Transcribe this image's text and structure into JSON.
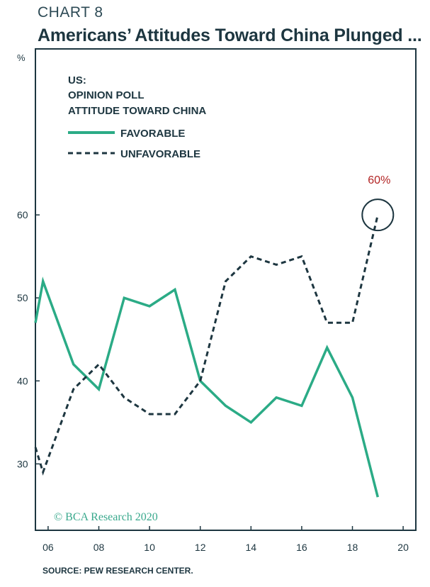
{
  "header": {
    "chart_label": "CHART 8",
    "title": "Americans’ Attitudes Toward China Plunged ..."
  },
  "footer": {
    "source": "SOURCE: PEW RESEARCH CENTER."
  },
  "watermark": "© BCA Research 2020",
  "colors": {
    "favorable": "#2bab86",
    "unfavorable": "#1d3640",
    "frame": "#1d3640",
    "callout": "#b22424"
  },
  "chart_data": {
    "type": "line",
    "y_unit": "%",
    "ylim": [
      22,
      80
    ],
    "xlim": [
      2005.5,
      2020.5
    ],
    "y_ticks": [
      30,
      40,
      50,
      60
    ],
    "x_ticks": [
      {
        "value": 2006,
        "label": "06"
      },
      {
        "value": 2008,
        "label": "08"
      },
      {
        "value": 2010,
        "label": "10"
      },
      {
        "value": 2012,
        "label": "12"
      },
      {
        "value": 2014,
        "label": "14"
      },
      {
        "value": 2016,
        "label": "16"
      },
      {
        "value": 2018,
        "label": "18"
      },
      {
        "value": 2020,
        "label": "20"
      }
    ],
    "legend": {
      "title_lines": [
        "US:",
        "OPINION POLL",
        "ATTITUDE TOWARD CHINA"
      ],
      "placement": "top-left"
    },
    "series": [
      {
        "name": "FAVORABLE",
        "style": "solid",
        "x": [
          2005.5,
          2005.8,
          2007,
          2008,
          2009,
          2010,
          2011,
          2012,
          2013,
          2014,
          2015,
          2016,
          2017,
          2018,
          2019
        ],
        "values": [
          47,
          52,
          42,
          39,
          50,
          49,
          51,
          40,
          37,
          35,
          38,
          37,
          44,
          38,
          26
        ]
      },
      {
        "name": "UNFAVORABLE",
        "style": "dashed",
        "x": [
          2005.5,
          2005.8,
          2007,
          2008,
          2009,
          2010,
          2011,
          2012,
          2013,
          2014,
          2015,
          2016,
          2017,
          2018,
          2019
        ],
        "values": [
          32,
          29,
          39,
          42,
          38,
          36,
          36,
          40,
          52,
          55,
          54,
          55,
          47,
          47,
          60
        ]
      }
    ],
    "annotation": {
      "text": "60%",
      "x": 2019,
      "y": 60,
      "shape": "circle"
    }
  }
}
